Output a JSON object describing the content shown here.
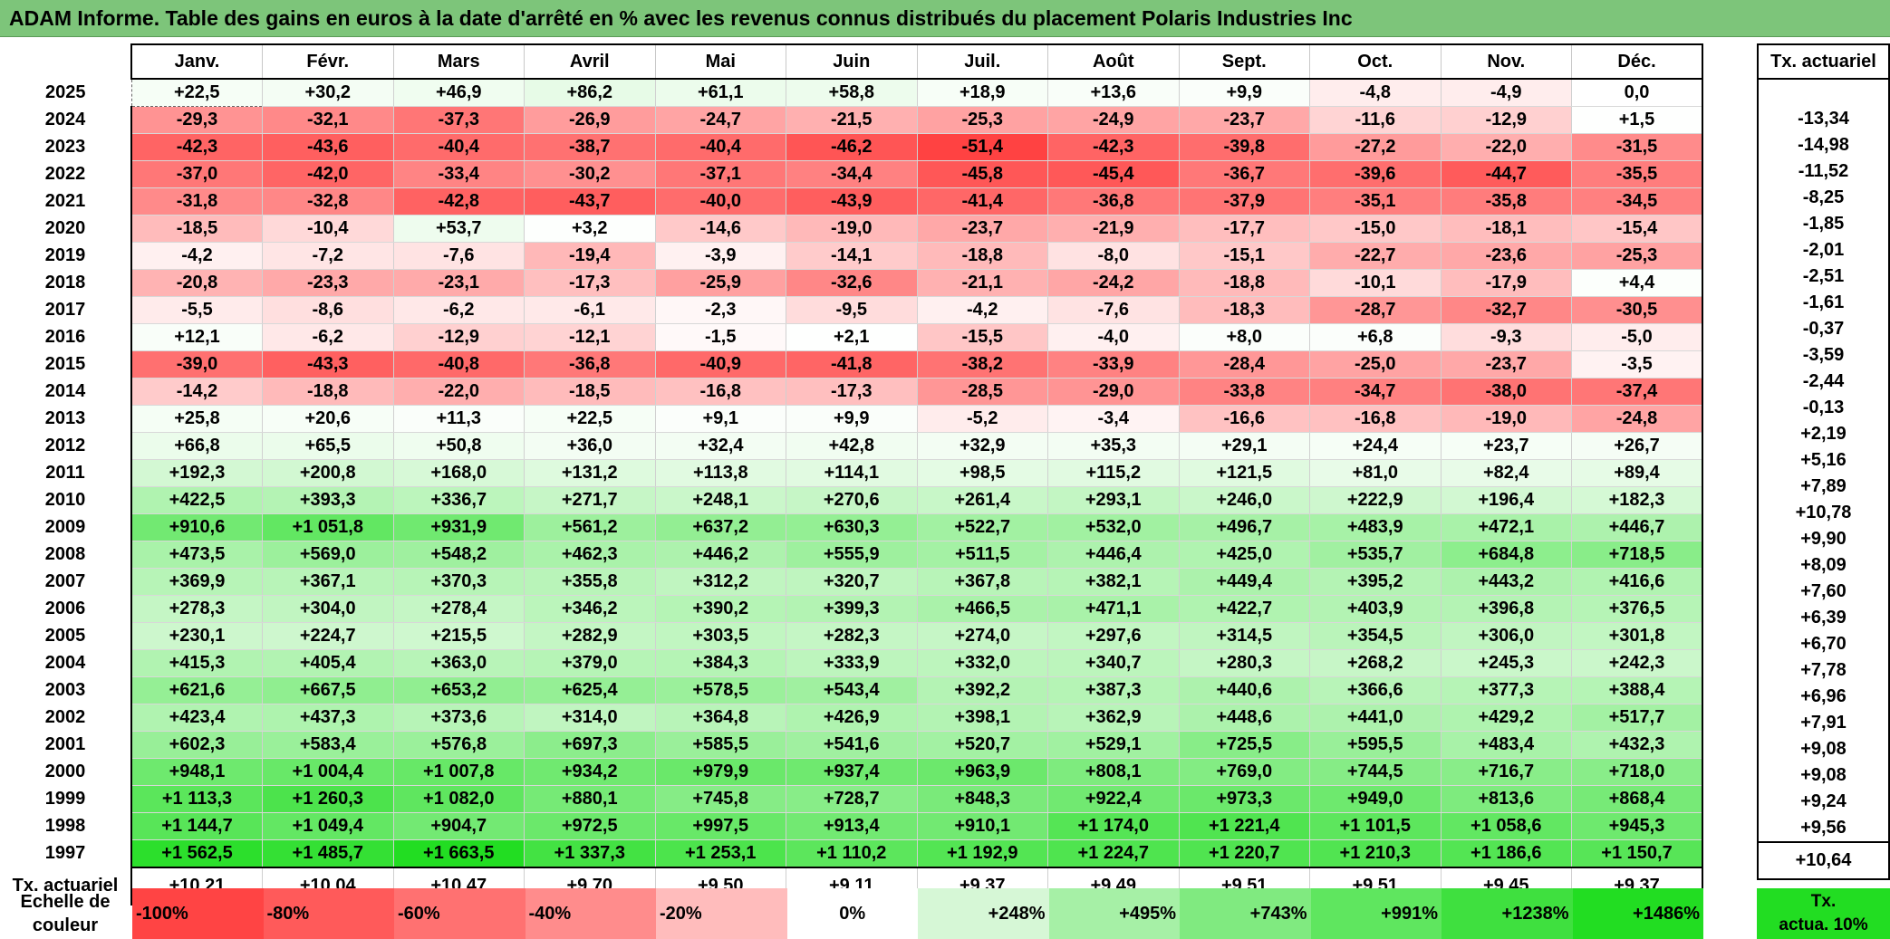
{
  "title": "ADAM Informe. Table des gains en euros à la date d'arrêté en % avec les revenus connus distribués du placement Polaris Industries Inc",
  "months": [
    "Janv.",
    "Févr.",
    "Mars",
    "Avril",
    "Mai",
    "Juin",
    "Juil.",
    "Août",
    "Sept.",
    "Oct.",
    "Nov.",
    "Déc."
  ],
  "tx_header": "Tx. actuariel",
  "colors": {
    "title_bg": "#7dc57a",
    "negative_max": "#ff4444",
    "positive_max": "#22dd22",
    "neutral": "#ffffff"
  },
  "rows": [
    {
      "year": "2025",
      "values": [
        "+22,5",
        "+30,2",
        "+46,9",
        "+86,2",
        "+61,1",
        "+58,8",
        "+18,9",
        "+13,6",
        "+9,9",
        "-4,8",
        "-4,9",
        "0,0"
      ],
      "tx": ""
    },
    {
      "year": "2024",
      "values": [
        "-29,3",
        "-32,1",
        "-37,3",
        "-26,9",
        "-24,7",
        "-21,5",
        "-25,3",
        "-24,9",
        "-23,7",
        "-11,6",
        "-12,9",
        "+1,5"
      ],
      "tx": "-13,34"
    },
    {
      "year": "2023",
      "values": [
        "-42,3",
        "-43,6",
        "-40,4",
        "-38,7",
        "-40,4",
        "-46,2",
        "-51,4",
        "-42,3",
        "-39,8",
        "-27,2",
        "-22,0",
        "-31,5"
      ],
      "tx": "-14,98"
    },
    {
      "year": "2022",
      "values": [
        "-37,0",
        "-42,0",
        "-33,4",
        "-30,2",
        "-37,1",
        "-34,4",
        "-45,8",
        "-45,4",
        "-36,7",
        "-39,6",
        "-44,7",
        "-35,5"
      ],
      "tx": "-11,52"
    },
    {
      "year": "2021",
      "values": [
        "-31,8",
        "-32,8",
        "-42,8",
        "-43,7",
        "-40,0",
        "-43,9",
        "-41,4",
        "-36,8",
        "-37,9",
        "-35,1",
        "-35,8",
        "-34,5"
      ],
      "tx": "-8,25"
    },
    {
      "year": "2020",
      "values": [
        "-18,5",
        "-10,4",
        "+53,7",
        "+3,2",
        "-14,6",
        "-19,0",
        "-23,7",
        "-21,9",
        "-17,7",
        "-15,0",
        "-18,1",
        "-15,4"
      ],
      "tx": "-1,85"
    },
    {
      "year": "2019",
      "values": [
        "-4,2",
        "-7,2",
        "-7,6",
        "-19,4",
        "-3,9",
        "-14,1",
        "-18,8",
        "-8,0",
        "-15,1",
        "-22,7",
        "-23,6",
        "-25,3"
      ],
      "tx": "-2,01"
    },
    {
      "year": "2018",
      "values": [
        "-20,8",
        "-23,3",
        "-23,1",
        "-17,3",
        "-25,9",
        "-32,6",
        "-21,1",
        "-24,2",
        "-18,8",
        "-10,1",
        "-17,9",
        "+4,4"
      ],
      "tx": "-2,51"
    },
    {
      "year": "2017",
      "values": [
        "-5,5",
        "-8,6",
        "-6,2",
        "-6,1",
        "-2,3",
        "-9,5",
        "-4,2",
        "-7,6",
        "-18,3",
        "-28,7",
        "-32,7",
        "-30,5"
      ],
      "tx": "-1,61"
    },
    {
      "year": "2016",
      "values": [
        "+12,1",
        "-6,2",
        "-12,9",
        "-12,1",
        "-1,5",
        "+2,1",
        "-15,5",
        "-4,0",
        "+8,0",
        "+6,8",
        "-9,3",
        "-5,0"
      ],
      "tx": "-0,37"
    },
    {
      "year": "2015",
      "values": [
        "-39,0",
        "-43,3",
        "-40,8",
        "-36,8",
        "-40,9",
        "-41,8",
        "-38,2",
        "-33,9",
        "-28,4",
        "-25,0",
        "-23,7",
        "-3,5"
      ],
      "tx": "-3,59"
    },
    {
      "year": "2014",
      "values": [
        "-14,2",
        "-18,8",
        "-22,0",
        "-18,5",
        "-16,8",
        "-17,3",
        "-28,5",
        "-29,0",
        "-33,8",
        "-34,7",
        "-38,0",
        "-37,4"
      ],
      "tx": "-2,44"
    },
    {
      "year": "2013",
      "values": [
        "+25,8",
        "+20,6",
        "+11,3",
        "+22,5",
        "+9,1",
        "+9,9",
        "-5,2",
        "-3,4",
        "-16,6",
        "-16,8",
        "-19,0",
        "-24,8"
      ],
      "tx": "-0,13"
    },
    {
      "year": "2012",
      "values": [
        "+66,8",
        "+65,5",
        "+50,8",
        "+36,0",
        "+32,4",
        "+42,8",
        "+32,9",
        "+35,3",
        "+29,1",
        "+24,4",
        "+23,7",
        "+26,7"
      ],
      "tx": "+2,19"
    },
    {
      "year": "2011",
      "values": [
        "+192,3",
        "+200,8",
        "+168,0",
        "+131,2",
        "+113,8",
        "+114,1",
        "+98,5",
        "+115,2",
        "+121,5",
        "+81,0",
        "+82,4",
        "+89,4"
      ],
      "tx": "+5,16"
    },
    {
      "year": "2010",
      "values": [
        "+422,5",
        "+393,3",
        "+336,7",
        "+271,7",
        "+248,1",
        "+270,6",
        "+261,4",
        "+293,1",
        "+246,0",
        "+222,9",
        "+196,4",
        "+182,3"
      ],
      "tx": "+7,89"
    },
    {
      "year": "2009",
      "values": [
        "+910,6",
        "+1 051,8",
        "+931,9",
        "+561,2",
        "+637,2",
        "+630,3",
        "+522,7",
        "+532,0",
        "+496,7",
        "+483,9",
        "+472,1",
        "+446,7"
      ],
      "tx": "+10,78"
    },
    {
      "year": "2008",
      "values": [
        "+473,5",
        "+569,0",
        "+548,2",
        "+462,3",
        "+446,2",
        "+555,9",
        "+511,5",
        "+446,4",
        "+425,0",
        "+535,7",
        "+684,8",
        "+718,5"
      ],
      "tx": "+9,90"
    },
    {
      "year": "2007",
      "values": [
        "+369,9",
        "+367,1",
        "+370,3",
        "+355,8",
        "+312,2",
        "+320,7",
        "+367,8",
        "+382,1",
        "+449,4",
        "+395,2",
        "+443,2",
        "+416,6"
      ],
      "tx": "+8,09"
    },
    {
      "year": "2006",
      "values": [
        "+278,3",
        "+304,0",
        "+278,4",
        "+346,2",
        "+390,2",
        "+399,3",
        "+466,5",
        "+471,1",
        "+422,7",
        "+403,9",
        "+396,8",
        "+376,5"
      ],
      "tx": "+7,60"
    },
    {
      "year": "2005",
      "values": [
        "+230,1",
        "+224,7",
        "+215,5",
        "+282,9",
        "+303,5",
        "+282,3",
        "+274,0",
        "+297,6",
        "+314,5",
        "+354,5",
        "+306,0",
        "+301,8"
      ],
      "tx": "+6,39"
    },
    {
      "year": "2004",
      "values": [
        "+415,3",
        "+405,4",
        "+363,0",
        "+379,0",
        "+384,3",
        "+333,9",
        "+332,0",
        "+340,7",
        "+280,3",
        "+268,2",
        "+245,3",
        "+242,3"
      ],
      "tx": "+6,70"
    },
    {
      "year": "2003",
      "values": [
        "+621,6",
        "+667,5",
        "+653,2",
        "+625,4",
        "+578,5",
        "+543,4",
        "+392,2",
        "+387,3",
        "+440,6",
        "+366,6",
        "+377,3",
        "+388,4"
      ],
      "tx": "+7,78"
    },
    {
      "year": "2002",
      "values": [
        "+423,4",
        "+437,3",
        "+373,6",
        "+314,0",
        "+364,8",
        "+426,9",
        "+398,1",
        "+362,9",
        "+448,6",
        "+441,0",
        "+429,2",
        "+517,7"
      ],
      "tx": "+6,96"
    },
    {
      "year": "2001",
      "values": [
        "+602,3",
        "+583,4",
        "+576,8",
        "+697,3",
        "+585,5",
        "+541,6",
        "+520,7",
        "+529,1",
        "+725,5",
        "+595,5",
        "+483,4",
        "+432,3"
      ],
      "tx": "+7,91"
    },
    {
      "year": "2000",
      "values": [
        "+948,1",
        "+1 004,4",
        "+1 007,8",
        "+934,2",
        "+979,9",
        "+937,4",
        "+963,9",
        "+808,1",
        "+769,0",
        "+744,5",
        "+716,7",
        "+718,0"
      ],
      "tx": "+9,08"
    },
    {
      "year": "1999",
      "values": [
        "+1 113,3",
        "+1 260,3",
        "+1 082,0",
        "+880,1",
        "+745,8",
        "+728,7",
        "+848,3",
        "+922,4",
        "+973,3",
        "+949,0",
        "+813,6",
        "+868,4"
      ],
      "tx": "+9,08"
    },
    {
      "year": "1998",
      "values": [
        "+1 144,7",
        "+1 049,4",
        "+904,7",
        "+972,5",
        "+997,5",
        "+913,4",
        "+910,1",
        "+1 174,0",
        "+1 221,4",
        "+1 101,5",
        "+1 058,6",
        "+945,3"
      ],
      "tx": "+9,24"
    },
    {
      "year": "1997",
      "values": [
        "+1 562,5",
        "+1 485,7",
        "+1 663,5",
        "+1 337,3",
        "+1 253,1",
        "+1 110,2",
        "+1 192,9",
        "+1 224,7",
        "+1 220,7",
        "+1 210,3",
        "+1 186,6",
        "+1 150,7"
      ],
      "tx": "+9,56"
    }
  ],
  "tx_row": {
    "label": "Tx. actuariel",
    "values": [
      "+10,21",
      "+10,04",
      "+10,47",
      "+9,70",
      "+9,50",
      "+9,11",
      "+9,37",
      "+9,49",
      "+9,51",
      "+9,51",
      "+9,45",
      "+9,37"
    ],
    "total": "+10,64"
  },
  "legend": {
    "label_line1": "Echelle de",
    "label_line2": "couleur",
    "items": [
      {
        "text": "-100%",
        "color": "#ff4444",
        "align": "left"
      },
      {
        "text": "-80%",
        "color": "#ff5a5a",
        "align": "left"
      },
      {
        "text": "-60%",
        "color": "#ff7171",
        "align": "left"
      },
      {
        "text": "-40%",
        "color": "#ff8c8c",
        "align": "left"
      },
      {
        "text": "-20%",
        "color": "#ffbcbc",
        "align": "left"
      },
      {
        "text": "0%",
        "color": "#ffffff",
        "align": "center"
      },
      {
        "text": "+248%",
        "color": "#d6f7d6",
        "align": "right"
      },
      {
        "text": "+495%",
        "color": "#a6f0a6",
        "align": "right"
      },
      {
        "text": "+743%",
        "color": "#80ea80",
        "align": "right"
      },
      {
        "text": "+991%",
        "color": "#5fe65f",
        "align": "right"
      },
      {
        "text": "+1238%",
        "color": "#3fe03f",
        "align": "right"
      },
      {
        "text": "+1486%",
        "color": "#22dd22",
        "align": "right"
      }
    ],
    "tx_line1": "Tx.",
    "tx_line2": "actua. 10%",
    "tx_color": "#22dd22"
  }
}
